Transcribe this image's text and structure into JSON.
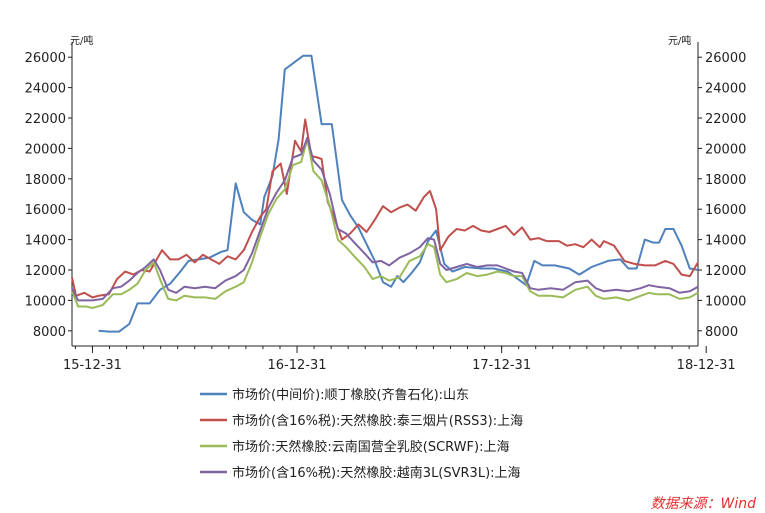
{
  "chart_data": {
    "type": "line",
    "unit_left": "元/吨",
    "unit_right": "元/吨",
    "ylim": [
      7000,
      27000
    ],
    "y_ticks": [
      8000,
      10000,
      12000,
      14000,
      16000,
      18000,
      20000,
      22000,
      24000,
      26000
    ],
    "y_tick_labels": [
      "8000",
      "10000",
      "12000",
      "14000",
      "16000",
      "18000",
      "20000",
      "22000",
      "24000",
      "26000"
    ],
    "xlim": [
      2015.9,
      2018.96
    ],
    "x_ticks": [
      2016.0,
      2017.0,
      2018.0,
      2019.0
    ],
    "x_tick_labels": [
      "15-12-31",
      "16-12-31",
      "17-12-31",
      "18-12-31"
    ],
    "grid": false,
    "legend_position": "bottom",
    "source": "数据来源：Wind",
    "series": [
      {
        "name": "市场价(中间价):顺丁橡胶(齐鲁石化):山东",
        "color": "#4f81bd",
        "points": [
          [
            2016.03,
            8000
          ],
          [
            2016.08,
            7950
          ],
          [
            2016.13,
            7950
          ],
          [
            2016.18,
            8450
          ],
          [
            2016.22,
            9800
          ],
          [
            2016.28,
            9800
          ],
          [
            2016.33,
            10700
          ],
          [
            2016.38,
            11100
          ],
          [
            2016.43,
            11900
          ],
          [
            2016.47,
            12600
          ],
          [
            2016.52,
            12700
          ],
          [
            2016.57,
            12800
          ],
          [
            2016.63,
            13200
          ],
          [
            2016.66,
            13300
          ],
          [
            2016.7,
            17700
          ],
          [
            2016.74,
            15800
          ],
          [
            2016.78,
            15300
          ],
          [
            2016.82,
            15000
          ],
          [
            2016.84,
            16800
          ],
          [
            2016.88,
            18200
          ],
          [
            2016.91,
            20600
          ],
          [
            2016.94,
            25200
          ],
          [
            2016.99,
            25700
          ],
          [
            2017.03,
            26100
          ],
          [
            2017.07,
            26100
          ],
          [
            2017.12,
            21600
          ],
          [
            2017.17,
            21600
          ],
          [
            2017.22,
            16600
          ],
          [
            2017.26,
            15600
          ],
          [
            2017.3,
            14800
          ],
          [
            2017.34,
            13700
          ],
          [
            2017.38,
            12600
          ],
          [
            2017.42,
            11200
          ],
          [
            2017.46,
            10900
          ],
          [
            2017.49,
            11600
          ],
          [
            2017.52,
            11200
          ],
          [
            2017.56,
            11800
          ],
          [
            2017.6,
            12500
          ],
          [
            2017.64,
            13900
          ],
          [
            2017.68,
            14600
          ],
          [
            2017.72,
            12400
          ],
          [
            2017.76,
            11900
          ],
          [
            2017.82,
            12200
          ],
          [
            2017.9,
            12100
          ],
          [
            2017.96,
            12100
          ],
          [
            2018.03,
            11900
          ],
          [
            2018.08,
            11400
          ],
          [
            2018.12,
            11000
          ],
          [
            2018.16,
            12600
          ],
          [
            2018.2,
            12300
          ],
          [
            2018.26,
            12300
          ],
          [
            2018.33,
            12100
          ],
          [
            2018.38,
            11700
          ],
          [
            2018.44,
            12200
          ],
          [
            2018.52,
            12600
          ],
          [
            2018.58,
            12700
          ],
          [
            2018.62,
            12100
          ],
          [
            2018.66,
            12100
          ],
          [
            2018.7,
            14000
          ],
          [
            2018.74,
            13800
          ],
          [
            2018.77,
            13800
          ],
          [
            2018.8,
            14700
          ],
          [
            2018.84,
            14700
          ],
          [
            2018.88,
            13600
          ],
          [
            2018.92,
            12100
          ],
          [
            2018.96,
            12000
          ]
        ]
      },
      {
        "name": "市场价(含16%税):天然橡胶:泰三烟片(RSS3):上海",
        "color": "#c0504d",
        "points": [
          [
            2015.9,
            11500
          ],
          [
            2015.92,
            10300
          ],
          [
            2015.96,
            10500
          ],
          [
            2016.0,
            10200
          ],
          [
            2016.03,
            10300
          ],
          [
            2016.08,
            10400
          ],
          [
            2016.12,
            11400
          ],
          [
            2016.16,
            11900
          ],
          [
            2016.2,
            11700
          ],
          [
            2016.24,
            12000
          ],
          [
            2016.28,
            11900
          ],
          [
            2016.31,
            12600
          ],
          [
            2016.34,
            13300
          ],
          [
            2016.38,
            12700
          ],
          [
            2016.42,
            12700
          ],
          [
            2016.46,
            13000
          ],
          [
            2016.5,
            12500
          ],
          [
            2016.54,
            13000
          ],
          [
            2016.58,
            12700
          ],
          [
            2016.62,
            12400
          ],
          [
            2016.66,
            12900
          ],
          [
            2016.7,
            12700
          ],
          [
            2016.74,
            13300
          ],
          [
            2016.78,
            14500
          ],
          [
            2016.82,
            15500
          ],
          [
            2016.85,
            16000
          ],
          [
            2016.88,
            18500
          ],
          [
            2016.92,
            19000
          ],
          [
            2016.95,
            17000
          ],
          [
            2016.99,
            20500
          ],
          [
            2017.02,
            19800
          ],
          [
            2017.04,
            21900
          ],
          [
            2017.07,
            19500
          ],
          [
            2017.1,
            19400
          ],
          [
            2017.12,
            19300
          ],
          [
            2017.15,
            16500
          ],
          [
            2017.18,
            15500
          ],
          [
            2017.22,
            14000
          ],
          [
            2017.26,
            14400
          ],
          [
            2017.3,
            15000
          ],
          [
            2017.34,
            14500
          ],
          [
            2017.38,
            15300
          ],
          [
            2017.42,
            16200
          ],
          [
            2017.46,
            15800
          ],
          [
            2017.5,
            16100
          ],
          [
            2017.54,
            16300
          ],
          [
            2017.58,
            15900
          ],
          [
            2017.62,
            16800
          ],
          [
            2017.65,
            17200
          ],
          [
            2017.68,
            16000
          ],
          [
            2017.7,
            13300
          ],
          [
            2017.74,
            14200
          ],
          [
            2017.78,
            14700
          ],
          [
            2017.82,
            14600
          ],
          [
            2017.86,
            14900
          ],
          [
            2017.9,
            14600
          ],
          [
            2017.94,
            14500
          ],
          [
            2017.98,
            14700
          ],
          [
            2018.02,
            14900
          ],
          [
            2018.06,
            14300
          ],
          [
            2018.1,
            14800
          ],
          [
            2018.14,
            14000
          ],
          [
            2018.18,
            14100
          ],
          [
            2018.22,
            13900
          ],
          [
            2018.28,
            13900
          ],
          [
            2018.32,
            13600
          ],
          [
            2018.36,
            13700
          ],
          [
            2018.4,
            13500
          ],
          [
            2018.44,
            14000
          ],
          [
            2018.48,
            13500
          ],
          [
            2018.5,
            13900
          ],
          [
            2018.55,
            13600
          ],
          [
            2018.6,
            12600
          ],
          [
            2018.65,
            12400
          ],
          [
            2018.7,
            12300
          ],
          [
            2018.75,
            12300
          ],
          [
            2018.8,
            12600
          ],
          [
            2018.84,
            12400
          ],
          [
            2018.88,
            11700
          ],
          [
            2018.92,
            11600
          ],
          [
            2018.96,
            12500
          ]
        ]
      },
      {
        "name": "市场价:天然橡胶:云南国营全乳胶(SCRWF):上海",
        "color": "#9bbb59",
        "points": [
          [
            2015.9,
            10600
          ],
          [
            2015.93,
            9600
          ],
          [
            2015.97,
            9600
          ],
          [
            2016.0,
            9500
          ],
          [
            2016.05,
            9700
          ],
          [
            2016.1,
            10400
          ],
          [
            2016.14,
            10400
          ],
          [
            2016.18,
            10700
          ],
          [
            2016.22,
            11100
          ],
          [
            2016.26,
            12000
          ],
          [
            2016.3,
            12500
          ],
          [
            2016.33,
            11400
          ],
          [
            2016.37,
            10100
          ],
          [
            2016.41,
            10000
          ],
          [
            2016.45,
            10300
          ],
          [
            2016.5,
            10200
          ],
          [
            2016.55,
            10200
          ],
          [
            2016.6,
            10100
          ],
          [
            2016.65,
            10600
          ],
          [
            2016.7,
            10900
          ],
          [
            2016.74,
            11200
          ],
          [
            2016.78,
            12500
          ],
          [
            2016.82,
            14200
          ],
          [
            2016.86,
            15700
          ],
          [
            2016.9,
            16700
          ],
          [
            2016.94,
            17300
          ],
          [
            2016.98,
            18900
          ],
          [
            2017.02,
            19100
          ],
          [
            2017.05,
            20600
          ],
          [
            2017.08,
            18500
          ],
          [
            2017.12,
            17900
          ],
          [
            2017.16,
            16200
          ],
          [
            2017.2,
            14000
          ],
          [
            2017.24,
            13500
          ],
          [
            2017.28,
            12900
          ],
          [
            2017.33,
            12200
          ],
          [
            2017.37,
            11400
          ],
          [
            2017.41,
            11600
          ],
          [
            2017.45,
            11300
          ],
          [
            2017.5,
            11500
          ],
          [
            2017.55,
            12600
          ],
          [
            2017.6,
            12900
          ],
          [
            2017.64,
            13700
          ],
          [
            2017.67,
            13500
          ],
          [
            2017.7,
            11700
          ],
          [
            2017.73,
            11200
          ],
          [
            2017.78,
            11400
          ],
          [
            2017.83,
            11800
          ],
          [
            2017.88,
            11600
          ],
          [
            2017.93,
            11700
          ],
          [
            2017.98,
            11900
          ],
          [
            2018.02,
            11800
          ],
          [
            2018.06,
            11600
          ],
          [
            2018.1,
            11600
          ],
          [
            2018.14,
            10600
          ],
          [
            2018.18,
            10300
          ],
          [
            2018.24,
            10300
          ],
          [
            2018.3,
            10200
          ],
          [
            2018.36,
            10700
          ],
          [
            2018.42,
            10900
          ],
          [
            2018.46,
            10300
          ],
          [
            2018.5,
            10100
          ],
          [
            2018.56,
            10200
          ],
          [
            2018.62,
            10000
          ],
          [
            2018.68,
            10300
          ],
          [
            2018.72,
            10500
          ],
          [
            2018.76,
            10400
          ],
          [
            2018.82,
            10400
          ],
          [
            2018.87,
            10100
          ],
          [
            2018.92,
            10200
          ],
          [
            2018.96,
            10500
          ]
        ]
      },
      {
        "name": "市场价(含16%税):天然橡胶:越南3L(SVR3L):上海",
        "color": "#8064a2",
        "points": [
          [
            2015.9,
            10800
          ],
          [
            2015.93,
            10000
          ],
          [
            2015.97,
            10000
          ],
          [
            2016.0,
            10000
          ],
          [
            2016.05,
            10100
          ],
          [
            2016.1,
            10800
          ],
          [
            2016.14,
            10900
          ],
          [
            2016.18,
            11300
          ],
          [
            2016.22,
            11800
          ],
          [
            2016.26,
            12200
          ],
          [
            2016.3,
            12700
          ],
          [
            2016.33,
            12000
          ],
          [
            2016.37,
            10700
          ],
          [
            2016.41,
            10500
          ],
          [
            2016.45,
            10900
          ],
          [
            2016.5,
            10800
          ],
          [
            2016.55,
            10900
          ],
          [
            2016.6,
            10800
          ],
          [
            2016.65,
            11300
          ],
          [
            2016.7,
            11600
          ],
          [
            2016.74,
            12000
          ],
          [
            2016.78,
            13100
          ],
          [
            2016.82,
            14600
          ],
          [
            2016.86,
            16100
          ],
          [
            2016.9,
            17100
          ],
          [
            2016.94,
            17900
          ],
          [
            2016.98,
            19400
          ],
          [
            2017.02,
            19600
          ],
          [
            2017.05,
            20700
          ],
          [
            2017.08,
            19200
          ],
          [
            2017.12,
            18600
          ],
          [
            2017.16,
            17000
          ],
          [
            2017.2,
            14700
          ],
          [
            2017.24,
            14400
          ],
          [
            2017.28,
            13800
          ],
          [
            2017.33,
            13100
          ],
          [
            2017.37,
            12500
          ],
          [
            2017.41,
            12600
          ],
          [
            2017.45,
            12300
          ],
          [
            2017.5,
            12800
          ],
          [
            2017.55,
            13100
          ],
          [
            2017.6,
            13500
          ],
          [
            2017.64,
            14100
          ],
          [
            2017.67,
            14000
          ],
          [
            2017.7,
            12400
          ],
          [
            2017.73,
            12000
          ],
          [
            2017.78,
            12200
          ],
          [
            2017.83,
            12400
          ],
          [
            2017.88,
            12200
          ],
          [
            2017.93,
            12300
          ],
          [
            2017.98,
            12300
          ],
          [
            2018.02,
            12100
          ],
          [
            2018.06,
            11900
          ],
          [
            2018.1,
            11800
          ],
          [
            2018.14,
            10800
          ],
          [
            2018.18,
            10700
          ],
          [
            2018.24,
            10800
          ],
          [
            2018.3,
            10700
          ],
          [
            2018.36,
            11200
          ],
          [
            2018.42,
            11300
          ],
          [
            2018.46,
            10800
          ],
          [
            2018.5,
            10600
          ],
          [
            2018.56,
            10700
          ],
          [
            2018.62,
            10600
          ],
          [
            2018.68,
            10800
          ],
          [
            2018.72,
            11000
          ],
          [
            2018.76,
            10900
          ],
          [
            2018.82,
            10800
          ],
          [
            2018.87,
            10500
          ],
          [
            2018.92,
            10600
          ],
          [
            2018.96,
            10900
          ]
        ]
      }
    ]
  }
}
